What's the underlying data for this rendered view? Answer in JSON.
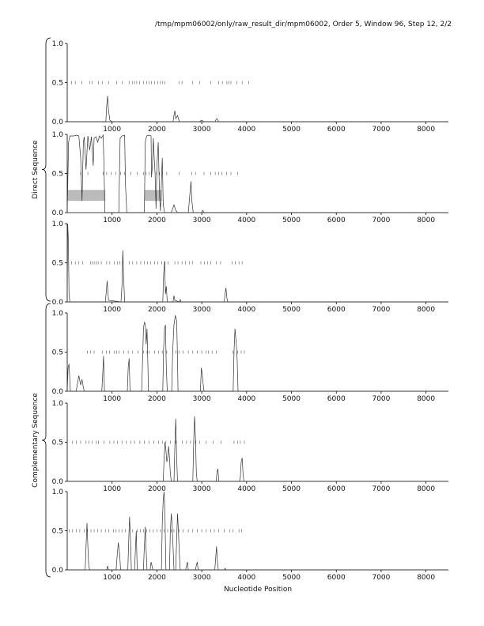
{
  "header": "/tmp/mpm06002/only/raw_result_dir/mpm06002, Order 5, Window 96, Step 12, 2/2",
  "xlabel": "Nucleotide Position",
  "groups": [
    "Direct Sequence",
    "Complementary Sequence"
  ],
  "colors": {
    "trace": "#333333",
    "highlight": "#bbbbbb",
    "axis": "#000000"
  },
  "chart_data": [
    {
      "type": "line",
      "group": "Direct Sequence",
      "frame": 1,
      "xlim": [
        0,
        8500
      ],
      "ylim": [
        0,
        1
      ],
      "xticks": [
        1000,
        2000,
        3000,
        4000,
        5000,
        6000,
        7000,
        8000
      ],
      "yticks": [
        "0.0",
        "0.5",
        "1.0"
      ],
      "markers_y": 0.5,
      "markers_x": [
        100,
        180,
        330,
        500,
        560,
        700,
        780,
        920,
        1100,
        1230,
        1380,
        1450,
        1500,
        1550,
        1610,
        1700,
        1770,
        1830,
        1880,
        1950,
        2020,
        2080,
        2130,
        2180,
        2500,
        2560,
        2800,
        2950,
        3200,
        3380,
        3460,
        3560,
        3600,
        3650,
        3780,
        3900,
        4050
      ],
      "series": [
        {
          "x": [
            0,
            860,
            880,
            900,
            920,
            950,
            1000,
            2360,
            2380,
            2400,
            2420,
            2460,
            2500,
            2950,
            3000,
            3050,
            3300,
            3320,
            3340,
            3380,
            3500,
            8500
          ],
          "y": [
            0,
            0,
            0.2,
            0.33,
            0.15,
            0.02,
            0,
            0,
            0.08,
            0.14,
            0.04,
            0.08,
            0,
            0,
            0.02,
            0,
            0,
            0.03,
            0.04,
            0,
            0,
            0
          ]
        }
      ]
    },
    {
      "type": "line",
      "group": "Direct Sequence",
      "frame": 2,
      "xlim": [
        0,
        8500
      ],
      "ylim": [
        0,
        1
      ],
      "xticks": [
        1000,
        2000,
        3000,
        4000,
        5000,
        6000,
        7000,
        8000
      ],
      "yticks": [
        "0.0",
        "0.5",
        "1.0"
      ],
      "markers_y": 0.5,
      "markers_x": [
        300,
        460,
        800,
        880,
        980,
        1080,
        1190,
        1280,
        1420,
        1560,
        1700,
        1760,
        1830,
        1880,
        1990,
        2060,
        2130,
        2220,
        2500,
        2780,
        2860,
        3050,
        3200,
        3300,
        3380,
        3450,
        3550,
        3650,
        3800
      ],
      "highlights": [
        {
          "x0": 0,
          "x1": 850,
          "y0": 0.15,
          "y1": 0.29
        },
        {
          "x0": 1720,
          "x1": 2110,
          "y0": 0.15,
          "y1": 0.29
        }
      ],
      "series": [
        {
          "x": [
            0,
            30,
            60,
            150,
            200,
            260,
            300,
            330,
            360,
            380,
            420,
            460,
            500,
            540,
            580,
            600,
            640,
            680,
            720,
            760,
            800,
            820,
            840,
            1150,
            1180,
            1220,
            1280,
            1300,
            1330,
            1720,
            1740,
            1770,
            1830,
            1870,
            1880,
            1900,
            1920,
            1940,
            1960,
            1980,
            2000,
            2030,
            2060,
            2080,
            2100,
            2120,
            2140,
            2170,
            2200,
            2320,
            2350,
            2380,
            2420,
            2460,
            2700,
            2730,
            2760,
            2780,
            2810,
            3000,
            3020,
            3050,
            8500
          ],
          "y": [
            0,
            0.9,
            0.98,
            0.98,
            0.99,
            0.98,
            0.7,
            0.15,
            0.9,
            0.97,
            0.55,
            0.98,
            0.8,
            0.97,
            0.6,
            0.95,
            0.97,
            0.9,
            0.98,
            0.95,
            0.99,
            0.6,
            0,
            0,
            0.95,
            0.98,
            0.99,
            0.35,
            0,
            0,
            0.9,
            0.98,
            0.99,
            0.98,
            0.45,
            0.6,
            0.95,
            0.7,
            0.5,
            0.05,
            0.6,
            0.9,
            0.2,
            0.02,
            0.4,
            0.7,
            0.1,
            0,
            0,
            0,
            0.05,
            0.1,
            0.03,
            0,
            0,
            0.2,
            0.4,
            0.15,
            0,
            0,
            0.03,
            0,
            0
          ]
        }
      ]
    },
    {
      "type": "line",
      "group": "Direct Sequence",
      "frame": 3,
      "xlim": [
        0,
        8500
      ],
      "ylim": [
        0,
        1
      ],
      "xticks": [
        1000,
        2000,
        3000,
        4000,
        5000,
        6000,
        7000,
        8000
      ],
      "yticks": [
        "0.0",
        "0.5",
        "1.0"
      ],
      "markers_y": 0.5,
      "markers_x": [
        100,
        180,
        260,
        340,
        520,
        560,
        600,
        640,
        690,
        760,
        880,
        950,
        1050,
        1120,
        1170,
        1230,
        1380,
        1460,
        1550,
        1640,
        1720,
        1790,
        1860,
        1950,
        2020,
        2110,
        2180,
        2250,
        2400,
        2470,
        2560,
        2640,
        2720,
        2790,
        2980,
        3060,
        3130,
        3200,
        3320,
        3420,
        3680,
        3750,
        3830,
        3900
      ],
      "series": [
        {
          "x": [
            0,
            10,
            25,
            40,
            60,
            850,
            870,
            890,
            920,
            1200,
            1220,
            1240,
            1260,
            1280,
            2130,
            2150,
            2170,
            2190,
            2210,
            2230,
            2360,
            2380,
            2400,
            2500,
            2520,
            2540,
            3500,
            3520,
            3540,
            3560,
            3580,
            8500
          ],
          "y": [
            0,
            1.0,
            0.8,
            0.1,
            0,
            0,
            0.12,
            0.27,
            0.02,
            0,
            0.2,
            0.66,
            0.3,
            0,
            0,
            0.35,
            0.52,
            0.1,
            0.2,
            0,
            0,
            0.08,
            0.02,
            0,
            0.03,
            0,
            0,
            0.1,
            0.18,
            0.05,
            0,
            0
          ]
        }
      ]
    },
    {
      "type": "line",
      "group": "Complementary Sequence",
      "frame": 1,
      "xlim": [
        0,
        8500
      ],
      "ylim": [
        0,
        1
      ],
      "xticks": [
        1000,
        2000,
        3000,
        4000,
        5000,
        6000,
        7000,
        8000
      ],
      "yticks": [
        "0.0",
        "0.5",
        "1.0"
      ],
      "markers_y": 0.5,
      "markers_x": [
        450,
        520,
        600,
        780,
        870,
        940,
        1050,
        1100,
        1160,
        1260,
        1360,
        1460,
        1580,
        1700,
        1780,
        1830,
        1950,
        2040,
        2120,
        2220,
        2350,
        2420,
        2490,
        2580,
        2700,
        2800,
        2900,
        3000,
        3100,
        3150,
        3230,
        3320,
        3700,
        3800,
        3880,
        3950
      ],
      "series": [
        {
          "x": [
            0,
            20,
            40,
            70,
            200,
            230,
            260,
            300,
            330,
            360,
            380,
            770,
            790,
            810,
            830,
            1340,
            1360,
            1380,
            1400,
            1660,
            1680,
            1700,
            1720,
            1740,
            1760,
            1780,
            1800,
            1810,
            2130,
            2150,
            2170,
            2190,
            2210,
            2230,
            2330,
            2350,
            2380,
            2410,
            2440,
            2460,
            2470,
            2970,
            2990,
            3010,
            3030,
            3050,
            3700,
            3720,
            3740,
            3770,
            3790,
            3810,
            8500
          ],
          "y": [
            0,
            0.3,
            0.35,
            0,
            0,
            0.1,
            0.2,
            0.08,
            0.15,
            0.05,
            0,
            0,
            0.2,
            0.45,
            0,
            0,
            0.3,
            0.42,
            0,
            0,
            0.4,
            0.8,
            0.88,
            0.86,
            0.6,
            0.8,
            0.3,
            0,
            0,
            0.55,
            0.8,
            0.85,
            0.3,
            0,
            0,
            0.5,
            0.85,
            0.97,
            0.9,
            0.4,
            0,
            0,
            0.3,
            0.22,
            0.1,
            0,
            0,
            0.5,
            0.8,
            0.6,
            0.4,
            0,
            0
          ]
        }
      ]
    },
    {
      "type": "line",
      "group": "Complementary Sequence",
      "frame": 2,
      "xlim": [
        0,
        8500
      ],
      "ylim": [
        0,
        1
      ],
      "xticks": [
        1000,
        2000,
        3000,
        4000,
        5000,
        6000,
        7000,
        8000
      ],
      "yticks": [
        "0.0",
        "0.5",
        "1.0"
      ],
      "markers_y": 0.5,
      "markers_x": [
        120,
        200,
        300,
        420,
        480,
        560,
        650,
        700,
        820,
        950,
        1040,
        1120,
        1220,
        1320,
        1420,
        1500,
        1620,
        1720,
        1820,
        1930,
        2040,
        2120,
        2200,
        2300,
        2420,
        2570,
        2660,
        2750,
        2820,
        2870,
        2950,
        3100,
        3250,
        3430,
        3720,
        3800,
        3860,
        3950
      ],
      "series": [
        {
          "x": [
            0,
            2140,
            2160,
            2180,
            2200,
            2220,
            2240,
            2260,
            2280,
            2300,
            2320,
            2380,
            2400,
            2420,
            2440,
            2460,
            2800,
            2820,
            2840,
            2860,
            2880,
            2900,
            3320,
            3340,
            3360,
            3380,
            3840,
            3860,
            3880,
            3900,
            3920,
            3940,
            8500
          ],
          "y": [
            0,
            0,
            0.3,
            0.5,
            0.4,
            0.25,
            0.3,
            0.45,
            0.3,
            0.1,
            0,
            0,
            0.45,
            0.8,
            0.3,
            0,
            0,
            0.5,
            0.83,
            0.55,
            0.1,
            0,
            0,
            0.12,
            0.16,
            0,
            0,
            0.05,
            0.25,
            0.3,
            0.1,
            0,
            0
          ]
        }
      ]
    },
    {
      "type": "line",
      "group": "Complementary Sequence",
      "frame": 3,
      "xlim": [
        0,
        8500
      ],
      "ylim": [
        0,
        1
      ],
      "xticks": [
        1000,
        2000,
        3000,
        4000,
        5000,
        6000,
        7000,
        8000
      ],
      "yticks": [
        "0.0",
        "0.5",
        "1.0"
      ],
      "markers_y": 0.5,
      "markers_x": [
        40,
        120,
        200,
        280,
        380,
        450,
        530,
        600,
        680,
        760,
        850,
        930,
        1030,
        1090,
        1160,
        1220,
        1300,
        1380,
        1460,
        1560,
        1630,
        1700,
        1770,
        1840,
        1920,
        2000,
        2080,
        2160,
        2240,
        2320,
        2380,
        2500,
        2580,
        2700,
        2800,
        2900,
        3000,
        3100,
        3200,
        3280,
        3380,
        3500,
        3620,
        3700,
        3830,
        3890
      ],
      "series": [
        {
          "x": [
            0,
            400,
            420,
            440,
            460,
            480,
            500,
            880,
            900,
            920,
            1090,
            1110,
            1140,
            1170,
            1190,
            1350,
            1370,
            1390,
            1410,
            1430,
            1500,
            1520,
            1540,
            1560,
            1700,
            1720,
            1740,
            1760,
            1780,
            1850,
            1870,
            1890,
            1910,
            2100,
            2120,
            2140,
            2160,
            2180,
            2200,
            2280,
            2300,
            2320,
            2340,
            2360,
            2380,
            2420,
            2440,
            2460,
            2480,
            2500,
            2520,
            2640,
            2660,
            2680,
            2700,
            2860,
            2880,
            2900,
            2920,
            3290,
            3310,
            3330,
            3350,
            3370,
            3500,
            3520,
            3540,
            8500
          ],
          "y": [
            0,
            0,
            0.3,
            0.6,
            0.3,
            0.05,
            0,
            0,
            0.05,
            0,
            0,
            0.15,
            0.35,
            0.2,
            0,
            0,
            0.35,
            0.68,
            0.4,
            0,
            0,
            0.25,
            0.5,
            0,
            0,
            0.3,
            0.55,
            0.25,
            0,
            0,
            0.1,
            0.05,
            0,
            0,
            0.6,
            0.9,
            1.0,
            0.7,
            0,
            0,
            0.5,
            0.72,
            0.55,
            0.3,
            0,
            0,
            0.4,
            0.72,
            0.5,
            0.2,
            0,
            0,
            0.05,
            0.1,
            0,
            0,
            0.06,
            0.1,
            0,
            0,
            0.15,
            0.3,
            0.1,
            0,
            0,
            0.02,
            0,
            0
          ]
        }
      ]
    }
  ]
}
